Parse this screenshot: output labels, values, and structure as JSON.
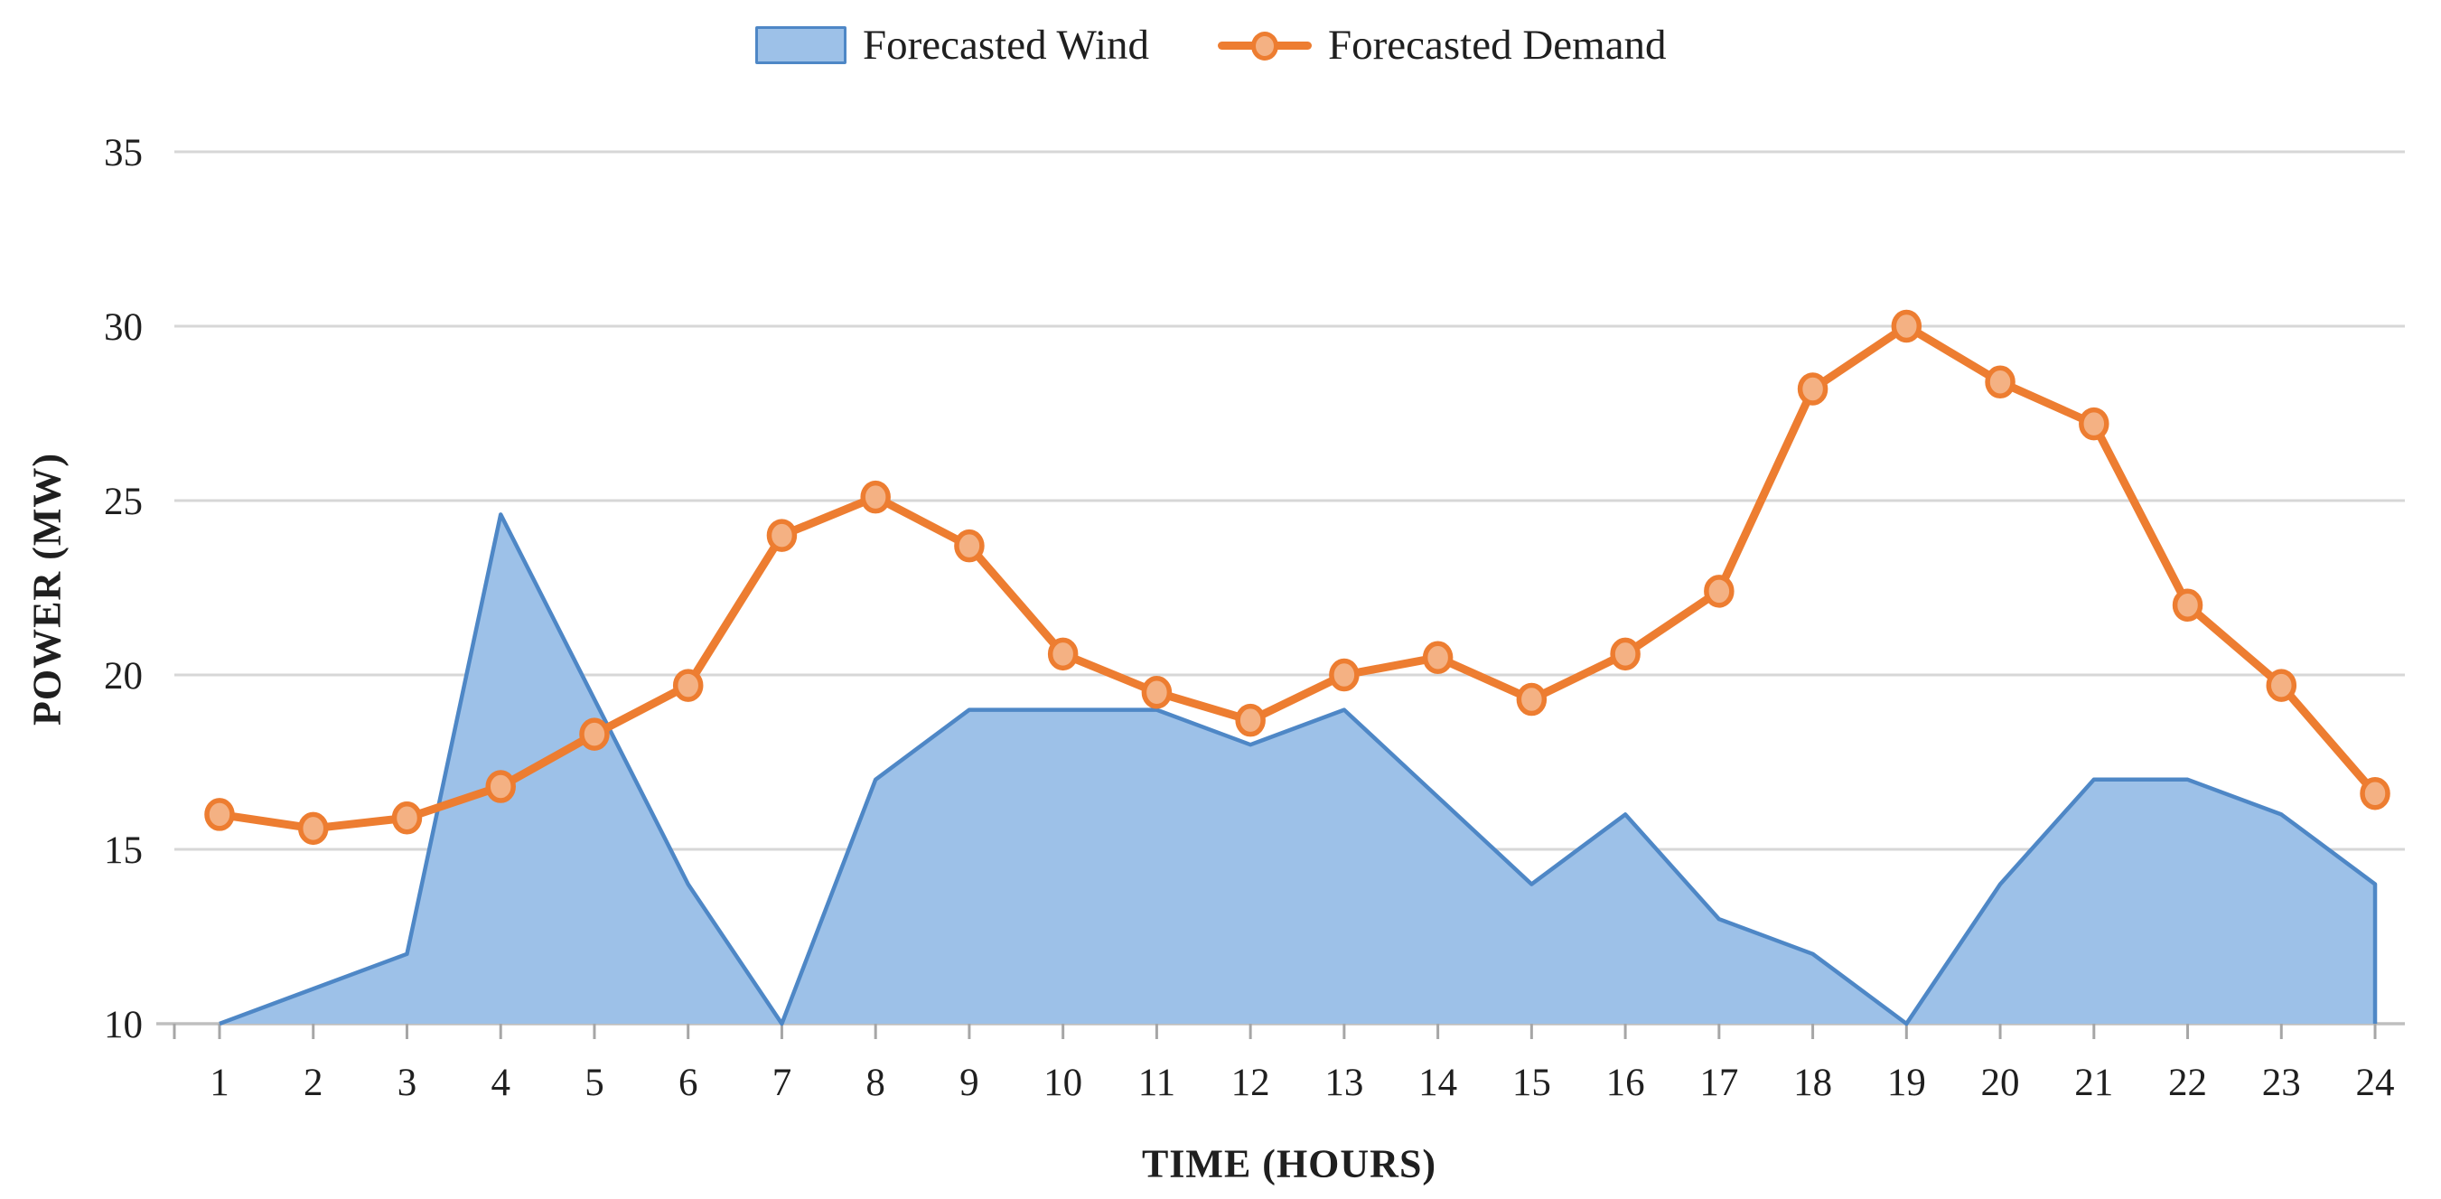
{
  "chart_data": {
    "type": "combo",
    "categories": [
      1,
      2,
      3,
      4,
      5,
      6,
      7,
      8,
      9,
      10,
      11,
      12,
      13,
      14,
      15,
      16,
      17,
      18,
      19,
      20,
      21,
      22,
      23,
      24
    ],
    "series": [
      {
        "name": "Forecasted Wind",
        "type": "area",
        "values": [
          10,
          11,
          12,
          24.6,
          19.3,
          14,
          10,
          17,
          19,
          19,
          19,
          18,
          19,
          16.5,
          14,
          16,
          13,
          12,
          10,
          14,
          17,
          17,
          16,
          14
        ],
        "fill": "#9DC1E8",
        "stroke": "#4E87C6"
      },
      {
        "name": "Forecasted Demand",
        "type": "line",
        "values": [
          16,
          15.6,
          15.9,
          16.8,
          18.3,
          19.7,
          24,
          25.1,
          23.7,
          20.6,
          19.5,
          18.7,
          20,
          20.5,
          19.3,
          20.6,
          22.4,
          28.2,
          30,
          28.4,
          27.2,
          22,
          19.7,
          16.6
        ],
        "stroke": "#ED7D31",
        "marker_fill": "#F4B183"
      }
    ],
    "title": "",
    "xlabel": "TIME (HOURS)",
    "ylabel": "POWER (MW)",
    "ylim": [
      10,
      35
    ],
    "y_ticks": [
      10,
      15,
      20,
      25,
      30,
      35
    ],
    "grid": true,
    "legend_position": "top"
  },
  "colors": {
    "gridline": "#D7D7D7",
    "axis_line": "#BFBFBF",
    "tick_mark": "#A6A6A6",
    "text": "#1F1F1F",
    "background": "#FFFFFF"
  }
}
